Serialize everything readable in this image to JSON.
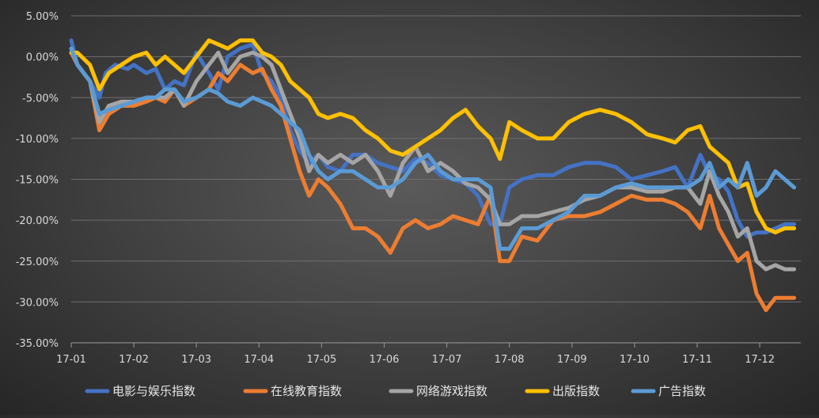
{
  "chart_data": {
    "type": "line",
    "title": "",
    "xlabel": "",
    "ylabel": "",
    "ylim": [
      -35,
      5
    ],
    "y_ticks": [
      5,
      0,
      -5,
      -10,
      -15,
      -20,
      -25,
      -30,
      -35
    ],
    "y_tick_labels": [
      "5.00%",
      "0.00%",
      "-5.00%",
      "-10.00%",
      "-15.00%",
      "-20.00%",
      "-25.00%",
      "-30.00%",
      "-35.00%"
    ],
    "x_range": [
      0,
      11.55
    ],
    "x_ticks": [
      0,
      1,
      2,
      3,
      4,
      5,
      6,
      7,
      8,
      9,
      10,
      11
    ],
    "x_tick_labels": [
      "17-01",
      "17-02",
      "17-03",
      "17-04",
      "17-05",
      "17-06",
      "17-07",
      "17-08",
      "17-09",
      "17-10",
      "17-11",
      "17-12"
    ],
    "grid": true,
    "legend_position": "bottom",
    "series": [
      {
        "name": "电影与娱乐指数",
        "color": "#4472c4",
        "x": [
          0,
          0.1,
          0.3,
          0.45,
          0.55,
          0.7,
          0.9,
          1.0,
          1.2,
          1.35,
          1.5,
          1.65,
          1.8,
          2.0,
          2.2,
          2.35,
          2.5,
          2.7,
          2.9,
          3.05,
          3.2,
          3.35,
          3.5,
          3.65,
          3.8,
          3.95,
          4.1,
          4.3,
          4.5,
          4.7,
          4.9,
          5.1,
          5.3,
          5.5,
          5.7,
          5.9,
          6.1,
          6.3,
          6.5,
          6.7,
          6.85,
          7.0,
          7.2,
          7.45,
          7.7,
          7.95,
          8.2,
          8.45,
          8.7,
          8.95,
          9.2,
          9.45,
          9.65,
          9.85,
          10.05,
          10.2,
          10.35,
          10.5,
          10.65,
          10.8,
          10.95,
          11.1,
          11.25,
          11.4,
          11.55
        ],
        "y": [
          2,
          -1,
          -3,
          -5,
          -2,
          -1,
          -1.5,
          -1,
          -2,
          -1.5,
          -4,
          -3,
          -3.5,
          0.5,
          -2,
          -4,
          0,
          1,
          1.5,
          -2,
          -3,
          -5,
          -9,
          -11.5,
          -13,
          -12,
          -13.5,
          -14,
          -12,
          -12,
          -13,
          -13.5,
          -14,
          -12.5,
          -13,
          -14.5,
          -15,
          -15.5,
          -17,
          -20.5,
          -20.5,
          -16,
          -15,
          -14.5,
          -14.5,
          -13.5,
          -13,
          -13,
          -13.5,
          -15,
          -14.5,
          -14,
          -13.5,
          -16,
          -12,
          -14.5,
          -15,
          -16.5,
          -20,
          -22,
          -21.5,
          -21.5,
          -21,
          -20.5,
          -20.5
        ]
      },
      {
        "name": "在线教育指数",
        "color": "#ed7d31",
        "x": [
          0,
          0.1,
          0.3,
          0.45,
          0.6,
          0.8,
          1.0,
          1.2,
          1.35,
          1.5,
          1.65,
          1.8,
          2.0,
          2.2,
          2.35,
          2.5,
          2.7,
          2.9,
          3.05,
          3.2,
          3.35,
          3.5,
          3.65,
          3.8,
          3.95,
          4.1,
          4.3,
          4.5,
          4.7,
          4.9,
          5.1,
          5.3,
          5.5,
          5.7,
          5.9,
          6.1,
          6.3,
          6.5,
          6.7,
          6.85,
          7.0,
          7.2,
          7.45,
          7.7,
          7.95,
          8.2,
          8.45,
          8.7,
          8.95,
          9.2,
          9.45,
          9.65,
          9.85,
          10.05,
          10.2,
          10.35,
          10.5,
          10.65,
          10.8,
          10.95,
          11.1,
          11.25,
          11.4,
          11.55
        ],
        "y": [
          0.5,
          -1,
          -3,
          -9,
          -7,
          -6,
          -6,
          -5.5,
          -5,
          -5.5,
          -4,
          -6,
          -5,
          -4,
          -2,
          -3,
          -1,
          -2,
          -1.5,
          -4,
          -6,
          -10,
          -14,
          -17,
          -15,
          -16,
          -18,
          -21,
          -21,
          -22,
          -24,
          -21,
          -20,
          -21,
          -20.5,
          -19.5,
          -20,
          -20.5,
          -17,
          -25,
          -25,
          -22,
          -22.5,
          -20,
          -19.5,
          -19.5,
          -19,
          -18,
          -17,
          -17.5,
          -17.5,
          -18,
          -19,
          -21,
          -17,
          -21,
          -23,
          -25,
          -24,
          -29,
          -31,
          -29.5,
          -29.5,
          -29.5
        ]
      },
      {
        "name": "网络游戏指数",
        "color": "#a5a5a5",
        "x": [
          0,
          0.1,
          0.3,
          0.45,
          0.6,
          0.8,
          1.0,
          1.2,
          1.35,
          1.5,
          1.65,
          1.8,
          2.0,
          2.2,
          2.35,
          2.5,
          2.7,
          2.9,
          3.05,
          3.2,
          3.35,
          3.5,
          3.65,
          3.8,
          3.95,
          4.1,
          4.3,
          4.5,
          4.7,
          4.9,
          5.1,
          5.3,
          5.5,
          5.7,
          5.9,
          6.1,
          6.3,
          6.5,
          6.7,
          6.85,
          7.0,
          7.2,
          7.45,
          7.7,
          7.95,
          8.2,
          8.45,
          8.7,
          8.95,
          9.2,
          9.45,
          9.65,
          9.85,
          10.05,
          10.2,
          10.35,
          10.5,
          10.65,
          10.8,
          10.95,
          11.1,
          11.25,
          11.4,
          11.55
        ],
        "y": [
          1,
          -1,
          -3,
          -8,
          -6,
          -5.5,
          -5.5,
          -5,
          -5,
          -5,
          -4,
          -6,
          -3,
          -1,
          0.5,
          -2,
          0,
          0.5,
          0,
          -1,
          -4,
          -7,
          -10,
          -14,
          -12,
          -13,
          -12,
          -13,
          -12,
          -14,
          -17,
          -13,
          -11,
          -14,
          -13,
          -14,
          -15.5,
          -16,
          -17.5,
          -20.5,
          -20.5,
          -19.5,
          -19.5,
          -19,
          -18.5,
          -17.5,
          -17,
          -16,
          -16,
          -16.5,
          -16.5,
          -16,
          -16,
          -18,
          -14,
          -17,
          -19,
          -22,
          -21,
          -25,
          -26,
          -25.5,
          -26,
          -26
        ]
      },
      {
        "name": "出版指数",
        "color": "#ffc000",
        "x": [
          0,
          0.1,
          0.3,
          0.45,
          0.6,
          0.8,
          1.0,
          1.2,
          1.35,
          1.5,
          1.65,
          1.8,
          2.0,
          2.2,
          2.35,
          2.5,
          2.7,
          2.9,
          3.05,
          3.2,
          3.35,
          3.5,
          3.65,
          3.8,
          3.95,
          4.1,
          4.3,
          4.5,
          4.7,
          4.9,
          5.1,
          5.3,
          5.5,
          5.7,
          5.9,
          6.1,
          6.3,
          6.5,
          6.7,
          6.85,
          7.0,
          7.2,
          7.45,
          7.7,
          7.95,
          8.2,
          8.45,
          8.7,
          8.95,
          9.2,
          9.45,
          9.65,
          9.85,
          10.05,
          10.2,
          10.35,
          10.5,
          10.65,
          10.8,
          10.95,
          11.1,
          11.25,
          11.4,
          11.55
        ],
        "y": [
          0.5,
          0.5,
          -1,
          -4,
          -2,
          -1,
          0,
          0.5,
          -1,
          0,
          -1,
          -2,
          0,
          2,
          1.5,
          1,
          2,
          2,
          0.5,
          0,
          -1,
          -3,
          -4,
          -5,
          -7,
          -7.5,
          -7,
          -7.5,
          -9,
          -10,
          -11.5,
          -12,
          -11,
          -10,
          -9,
          -7.5,
          -6.5,
          -8.5,
          -10,
          -12.5,
          -8,
          -9,
          -10,
          -10,
          -8,
          -7,
          -6.5,
          -7,
          -8,
          -9.5,
          -10,
          -10.5,
          -9,
          -8.5,
          -11,
          -12,
          -13,
          -16,
          -15.5,
          -19,
          -21,
          -21.5,
          -21,
          -21
        ]
      },
      {
        "name": "广告指数",
        "color": "#5b9bd5",
        "x": [
          0,
          0.1,
          0.3,
          0.45,
          0.6,
          0.8,
          1.0,
          1.2,
          1.35,
          1.5,
          1.65,
          1.8,
          2.0,
          2.2,
          2.35,
          2.5,
          2.7,
          2.9,
          3.05,
          3.2,
          3.35,
          3.5,
          3.65,
          3.8,
          3.95,
          4.1,
          4.3,
          4.5,
          4.7,
          4.9,
          5.1,
          5.3,
          5.5,
          5.7,
          5.9,
          6.1,
          6.3,
          6.5,
          6.7,
          6.85,
          7.0,
          7.2,
          7.45,
          7.7,
          7.95,
          8.2,
          8.45,
          8.7,
          8.95,
          9.2,
          9.45,
          9.65,
          9.85,
          10.05,
          10.2,
          10.35,
          10.5,
          10.65,
          10.8,
          10.95,
          11.1,
          11.25,
          11.4,
          11.55
        ],
        "y": [
          1,
          -1,
          -3,
          -7,
          -6.5,
          -6,
          -5.5,
          -5,
          -5,
          -4,
          -4,
          -5.5,
          -5,
          -4,
          -4.5,
          -5.5,
          -6,
          -5,
          -5.5,
          -6,
          -7,
          -8,
          -9,
          -12,
          -14,
          -15,
          -14,
          -14,
          -15,
          -16,
          -16,
          -15,
          -13,
          -12,
          -14,
          -15,
          -15,
          -15,
          -16,
          -23.5,
          -23.5,
          -21,
          -21,
          -20,
          -19,
          -17,
          -17,
          -16,
          -15.5,
          -16,
          -16,
          -16,
          -16,
          -15,
          -13,
          -16,
          -15,
          -16,
          -13,
          -17,
          -16,
          -14,
          -15,
          -16
        ]
      }
    ]
  }
}
